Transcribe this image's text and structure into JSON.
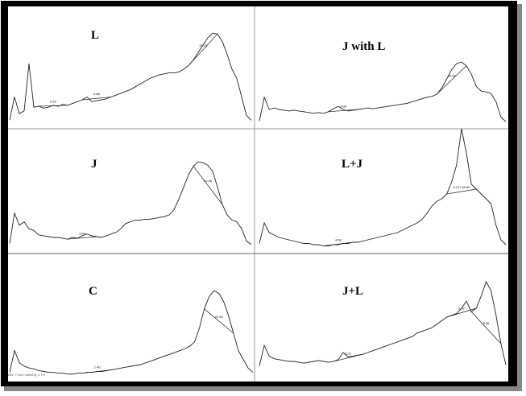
{
  "figure": {
    "footnote": "BW: 7.0cm marking: 1.7%"
  },
  "chart_data": [
    {
      "type": "line",
      "title": "L",
      "x": [
        0,
        0.02,
        0.04,
        0.06,
        0.08,
        0.1,
        0.12,
        0.14,
        0.16,
        0.18,
        0.2,
        0.22,
        0.24,
        0.26,
        0.28,
        0.3,
        0.32,
        0.34,
        0.36,
        0.38,
        0.4,
        0.42,
        0.44,
        0.46,
        0.48,
        0.5,
        0.52,
        0.54,
        0.56,
        0.58,
        0.6,
        0.62,
        0.64,
        0.66,
        0.68,
        0.7,
        0.72,
        0.74,
        0.76,
        0.78,
        0.8,
        0.82,
        0.84,
        0.86,
        0.88,
        0.9,
        0.92,
        0.94,
        0.96,
        0.98,
        1.0
      ],
      "y": [
        0.05,
        0.3,
        0.12,
        0.15,
        0.66,
        0.19,
        0.2,
        0.18,
        0.19,
        0.21,
        0.2,
        0.22,
        0.21,
        0.23,
        0.25,
        0.27,
        0.3,
        0.25,
        0.26,
        0.27,
        0.28,
        0.3,
        0.32,
        0.34,
        0.36,
        0.38,
        0.41,
        0.44,
        0.47,
        0.5,
        0.52,
        0.54,
        0.55,
        0.56,
        0.56,
        0.57,
        0.6,
        0.64,
        0.7,
        0.78,
        0.86,
        0.94,
        0.99,
        0.98,
        0.9,
        0.76,
        0.6,
        0.5,
        0.3,
        0.1,
        0.05
      ],
      "peaks": [
        {
          "label": "0.59",
          "x": 0.19
        },
        {
          "label": "4.86",
          "x": 0.36
        },
        {
          "label": "15.23",
          "x": 0.8
        }
      ]
    },
    {
      "type": "line",
      "title": "J with L",
      "x": [
        0,
        0.02,
        0.04,
        0.06,
        0.08,
        0.1,
        0.12,
        0.14,
        0.16,
        0.18,
        0.2,
        0.22,
        0.24,
        0.26,
        0.28,
        0.3,
        0.32,
        0.34,
        0.36,
        0.38,
        0.4,
        0.42,
        0.44,
        0.46,
        0.48,
        0.5,
        0.52,
        0.54,
        0.56,
        0.58,
        0.6,
        0.62,
        0.64,
        0.66,
        0.68,
        0.7,
        0.72,
        0.74,
        0.76,
        0.78,
        0.8,
        0.82,
        0.84,
        0.86,
        0.88,
        0.9,
        0.92,
        0.94,
        0.96,
        0.98,
        1.0
      ],
      "y": [
        0.05,
        0.36,
        0.2,
        0.22,
        0.2,
        0.19,
        0.18,
        0.19,
        0.18,
        0.17,
        0.16,
        0.15,
        0.16,
        0.15,
        0.17,
        0.21,
        0.24,
        0.2,
        0.18,
        0.19,
        0.2,
        0.21,
        0.22,
        0.21,
        0.22,
        0.23,
        0.24,
        0.25,
        0.26,
        0.27,
        0.28,
        0.3,
        0.32,
        0.34,
        0.36,
        0.37,
        0.4,
        0.48,
        0.6,
        0.72,
        0.8,
        0.82,
        0.77,
        0.66,
        0.5,
        0.44,
        0.43,
        0.41,
        0.3,
        0.1,
        0.04
      ],
      "peaks": [
        {
          "label": "4.98",
          "x": 0.35
        },
        {
          "label": "15.54",
          "x": 0.78
        }
      ]
    },
    {
      "type": "line",
      "title": "J",
      "x": [
        0,
        0.02,
        0.04,
        0.06,
        0.08,
        0.1,
        0.12,
        0.14,
        0.16,
        0.18,
        0.2,
        0.22,
        0.24,
        0.26,
        0.28,
        0.3,
        0.32,
        0.34,
        0.36,
        0.38,
        0.4,
        0.42,
        0.44,
        0.46,
        0.48,
        0.5,
        0.52,
        0.54,
        0.56,
        0.58,
        0.6,
        0.62,
        0.64,
        0.66,
        0.68,
        0.7,
        0.72,
        0.74,
        0.76,
        0.78,
        0.8,
        0.82,
        0.84,
        0.86,
        0.88,
        0.9,
        0.92,
        0.94,
        0.96,
        0.98,
        1.0
      ],
      "y": [
        0.05,
        0.4,
        0.26,
        0.3,
        0.22,
        0.2,
        0.15,
        0.14,
        0.13,
        0.12,
        0.12,
        0.11,
        0.1,
        0.12,
        0.11,
        0.14,
        0.16,
        0.14,
        0.13,
        0.12,
        0.14,
        0.16,
        0.18,
        0.22,
        0.28,
        0.3,
        0.32,
        0.32,
        0.33,
        0.33,
        0.34,
        0.35,
        0.36,
        0.38,
        0.44,
        0.56,
        0.7,
        0.84,
        0.94,
        0.99,
        0.98,
        0.95,
        0.88,
        0.7,
        0.5,
        0.38,
        0.32,
        0.3,
        0.22,
        0.08,
        0.04
      ],
      "peaks": [
        {
          "label": "3.54",
          "x": 0.3
        },
        {
          "label": "22.46",
          "x": 0.82
        }
      ]
    },
    {
      "type": "line",
      "title": "L+J",
      "x": [
        0,
        0.02,
        0.04,
        0.06,
        0.08,
        0.1,
        0.12,
        0.14,
        0.16,
        0.18,
        0.2,
        0.22,
        0.24,
        0.26,
        0.28,
        0.3,
        0.32,
        0.34,
        0.36,
        0.38,
        0.4,
        0.42,
        0.44,
        0.46,
        0.48,
        0.5,
        0.52,
        0.54,
        0.56,
        0.58,
        0.6,
        0.62,
        0.64,
        0.66,
        0.68,
        0.7,
        0.72,
        0.74,
        0.76,
        0.78,
        0.8,
        0.82,
        0.84,
        0.86,
        0.88,
        0.9,
        0.92,
        0.94,
        0.96,
        0.98,
        1.0
      ],
      "y": [
        0.05,
        0.22,
        0.14,
        0.12,
        0.1,
        0.09,
        0.08,
        0.07,
        0.06,
        0.05,
        0.05,
        0.04,
        0.04,
        0.03,
        0.03,
        0.04,
        0.04,
        0.05,
        0.05,
        0.06,
        0.06,
        0.07,
        0.08,
        0.09,
        0.1,
        0.11,
        0.12,
        0.13,
        0.14,
        0.16,
        0.18,
        0.2,
        0.22,
        0.25,
        0.3,
        0.36,
        0.4,
        0.42,
        0.46,
        0.56,
        0.7,
        1.0,
        0.8,
        0.54,
        0.5,
        0.46,
        0.42,
        0.38,
        0.2,
        0.08,
        0.04
      ],
      "peaks": [
        {
          "label": "4.68",
          "x": 0.33
        },
        {
          "label": "0.017 66.89",
          "x": 0.82
        }
      ]
    },
    {
      "type": "line",
      "title": "C",
      "x": [
        0,
        0.02,
        0.04,
        0.06,
        0.08,
        0.1,
        0.12,
        0.14,
        0.16,
        0.18,
        0.2,
        0.22,
        0.24,
        0.26,
        0.28,
        0.3,
        0.32,
        0.34,
        0.36,
        0.38,
        0.4,
        0.42,
        0.44,
        0.46,
        0.48,
        0.5,
        0.52,
        0.54,
        0.56,
        0.58,
        0.6,
        0.62,
        0.64,
        0.66,
        0.68,
        0.7,
        0.72,
        0.74,
        0.76,
        0.78,
        0.8,
        0.82,
        0.84,
        0.86,
        0.88,
        0.9,
        0.92,
        0.94,
        0.96,
        0.98,
        1.0
      ],
      "y": [
        0.05,
        0.3,
        0.16,
        0.12,
        0.1,
        0.09,
        0.07,
        0.06,
        0.05,
        0.05,
        0.04,
        0.04,
        0.03,
        0.03,
        0.04,
        0.04,
        0.05,
        0.05,
        0.06,
        0.06,
        0.07,
        0.08,
        0.09,
        0.1,
        0.11,
        0.12,
        0.13,
        0.14,
        0.16,
        0.18,
        0.2,
        0.22,
        0.24,
        0.26,
        0.28,
        0.3,
        0.32,
        0.35,
        0.4,
        0.56,
        0.78,
        0.92,
        0.99,
        0.96,
        0.86,
        0.7,
        0.5,
        0.3,
        0.2,
        0.1,
        0.05
      ],
      "peaks": [
        {
          "label": "1.40",
          "x": 0.36
        },
        {
          "label": "22.40",
          "x": 0.86
        }
      ]
    },
    {
      "type": "line",
      "title": "J+L",
      "x": [
        0,
        0.02,
        0.04,
        0.06,
        0.08,
        0.1,
        0.12,
        0.14,
        0.16,
        0.18,
        0.2,
        0.22,
        0.24,
        0.26,
        0.28,
        0.3,
        0.32,
        0.34,
        0.36,
        0.38,
        0.4,
        0.42,
        0.44,
        0.46,
        0.48,
        0.5,
        0.52,
        0.54,
        0.56,
        0.58,
        0.6,
        0.62,
        0.64,
        0.66,
        0.68,
        0.7,
        0.72,
        0.74,
        0.76,
        0.78,
        0.8,
        0.82,
        0.84,
        0.86,
        0.88,
        0.9,
        0.92,
        0.94,
        0.96,
        0.98,
        1.0
      ],
      "y": [
        0.05,
        0.28,
        0.16,
        0.13,
        0.12,
        0.11,
        0.1,
        0.1,
        0.09,
        0.08,
        0.09,
        0.1,
        0.11,
        0.1,
        0.09,
        0.1,
        0.12,
        0.2,
        0.15,
        0.16,
        0.17,
        0.18,
        0.2,
        0.22,
        0.24,
        0.26,
        0.28,
        0.3,
        0.32,
        0.34,
        0.36,
        0.38,
        0.42,
        0.44,
        0.46,
        0.48,
        0.52,
        0.56,
        0.6,
        0.62,
        0.64,
        0.7,
        0.78,
        0.66,
        0.7,
        0.84,
        1.0,
        0.9,
        0.62,
        0.3,
        0.06
      ],
      "peaks": [
        {
          "label": "8.21",
          "x": 0.36
        },
        {
          "label": "6.92",
          "x": 0.81
        },
        {
          "label": "8.56",
          "x": 0.92
        }
      ]
    }
  ]
}
